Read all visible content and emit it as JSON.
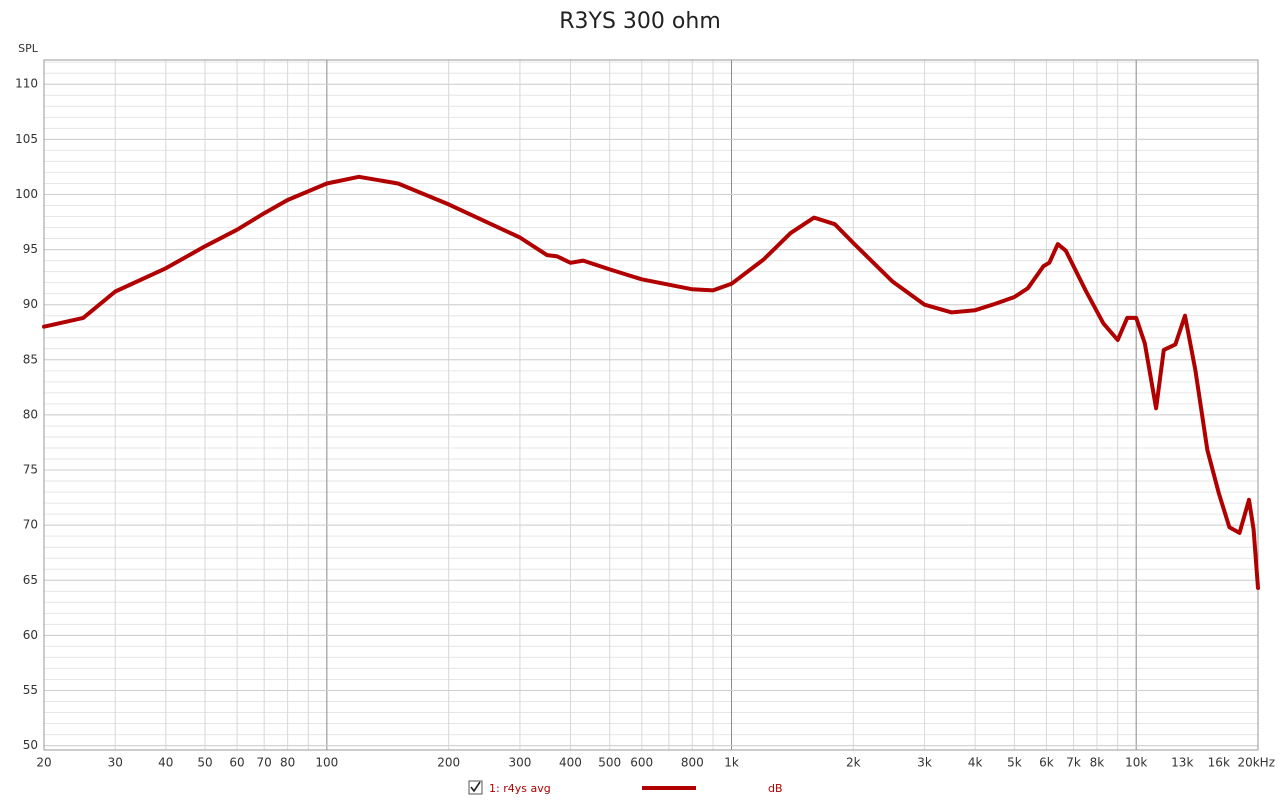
{
  "chart_data": {
    "type": "line",
    "title": "R3YS 300 ohm",
    "ylabel": "SPL",
    "log_x": true,
    "grid": true,
    "xlim": [
      20,
      20000
    ],
    "ylim": [
      49.6,
      112.2
    ],
    "yticks": [
      50,
      55,
      60,
      65,
      70,
      75,
      80,
      85,
      90,
      95,
      100,
      105,
      110
    ],
    "xticks": [
      20,
      30,
      40,
      50,
      60,
      70,
      80,
      100,
      200,
      300,
      400,
      500,
      600,
      800,
      {
        "value": 1000,
        "label": "1k"
      },
      {
        "value": 2000,
        "label": "2k"
      },
      {
        "value": 3000,
        "label": "3k"
      },
      {
        "value": 4000,
        "label": "4k"
      },
      {
        "value": 5000,
        "label": "5k"
      },
      {
        "value": 6000,
        "label": "6k"
      },
      {
        "value": 7000,
        "label": "7k"
      },
      {
        "value": 8000,
        "label": "8k"
      },
      {
        "value": 10000,
        "label": "10k"
      },
      {
        "value": 13000,
        "label": "13k"
      },
      {
        "value": 16000,
        "label": "16k"
      },
      {
        "value": 20000,
        "label": "20kHz"
      }
    ],
    "x": [
      20,
      25,
      30,
      40,
      50,
      60,
      70,
      80,
      100,
      120,
      150,
      200,
      300,
      350,
      370,
      400,
      430,
      500,
      600,
      800,
      900,
      1000,
      1200,
      1400,
      1600,
      1800,
      2000,
      2500,
      3000,
      3500,
      4000,
      4500,
      5000,
      5400,
      5900,
      6100,
      6400,
      6700,
      7500,
      8300,
      9000,
      9500,
      10000,
      10500,
      11200,
      11700,
      12500,
      13200,
      14000,
      15000,
      16000,
      17000,
      18000,
      19000,
      19500,
      20000
    ],
    "series": [
      {
        "name": "1: r4ys avg",
        "unit": "dB",
        "color": "#b00000",
        "values": [
          88.0,
          88.8,
          91.2,
          93.3,
          95.3,
          96.8,
          98.3,
          99.5,
          101.0,
          101.6,
          101.0,
          99.1,
          96.1,
          94.5,
          94.4,
          93.8,
          94.0,
          93.2,
          92.3,
          91.4,
          91.3,
          91.9,
          94.1,
          96.5,
          97.9,
          97.3,
          95.6,
          92.1,
          90.0,
          89.3,
          89.5,
          90.1,
          90.7,
          91.5,
          93.5,
          93.8,
          95.5,
          94.9,
          91.3,
          88.3,
          86.8,
          88.8,
          88.8,
          86.5,
          80.6,
          85.9,
          86.4,
          89.0,
          84.1,
          76.8,
          72.9,
          69.8,
          69.3,
          72.3,
          69.6,
          64.3
        ]
      }
    ]
  }
}
